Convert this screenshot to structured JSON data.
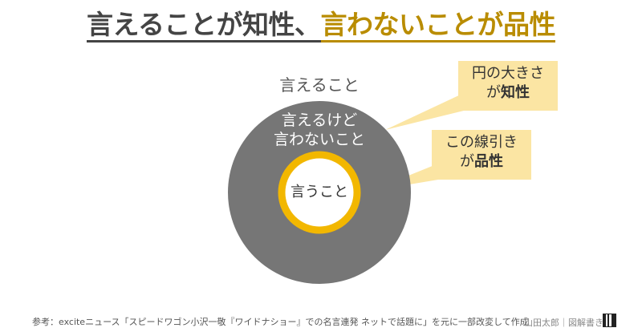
{
  "title": {
    "part_a": "言えることが知性、",
    "part_b": "言わないことが",
    "part_b2": "品性"
  },
  "diagram": {
    "outer_label": "言えること",
    "mid_label_line1": "言えるけど",
    "mid_label_line2": "言わないこと",
    "inner_label": "言うこと",
    "colors": {
      "outer_circle": "#767676",
      "ring": "#f2b700",
      "callout_bg": "#fbe5a3",
      "title_accent": "#b98c00"
    }
  },
  "callouts": [
    {
      "line1": "円の大きさ",
      "line2_prefix": "が",
      "line2_bold": "知性"
    },
    {
      "line1": "この線引き",
      "line2_prefix": "が",
      "line2_bold": "品性"
    }
  ],
  "footer": {
    "source": "参考：exciteニュース「スピードワゴン小沢一敬『ワイドナショー』での名言連発 ネットで話題に」を元に一部改変して作成",
    "credit": "山田太郎｜図解書き"
  }
}
